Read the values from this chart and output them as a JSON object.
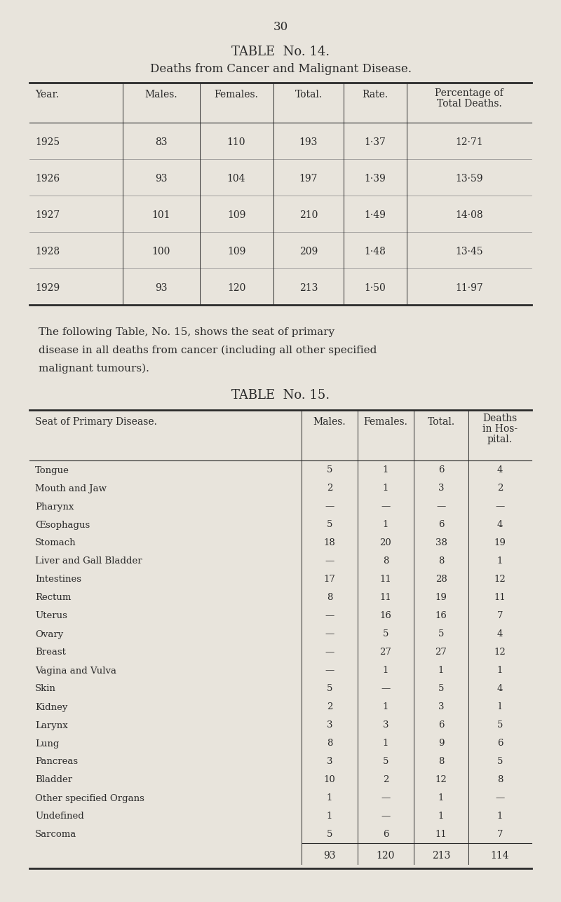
{
  "page_number": "30",
  "bg_color": "#e8e4dc",
  "text_color": "#2a2a2a",
  "table14": {
    "title": "TABLE  No. 14.",
    "subtitle": "Deaths from Cancer and Malignant Disease.",
    "headers": [
      "Year.",
      "Males.",
      "Females.",
      "Total.",
      "Rate.",
      "Percentage of\nTotal Deaths."
    ],
    "rows": [
      [
        "1925",
        "83",
        "110",
        "193",
        "1·37",
        "12·71"
      ],
      [
        "1926",
        "93",
        "104",
        "197",
        "1·39",
        "13·59"
      ],
      [
        "1927",
        "101",
        "109",
        "210",
        "1·49",
        "14·08"
      ],
      [
        "1928",
        "100",
        "109",
        "209",
        "1·48",
        "13·45"
      ],
      [
        "1929",
        "93",
        "120",
        "213",
        "1·50",
        "11·97"
      ]
    ]
  },
  "para_lines": [
    "The following Table, No. 15, shows the seat of primary",
    "disease in all deaths from cancer (including all other specified",
    "malignant tumours)."
  ],
  "table15": {
    "title": "TABLE  No. 15.",
    "headers": [
      "Seat of Primary Disease.",
      "Males.",
      "Females.",
      "Total.",
      "Deaths\nin Hos-\npital."
    ],
    "rows": [
      [
        "Tongue  ..    ..    ..    ..",
        "5",
        "1",
        "6",
        "4"
      ],
      [
        "Mouth and Jaw    ..    ..",
        "2",
        "1",
        "3",
        "2"
      ],
      [
        "Pharynx ..    ..    ..    ..",
        "—",
        "—",
        "—",
        "—"
      ],
      [
        "Œsophagus    ..    ..    ..",
        "5",
        "1",
        "6",
        "4"
      ],
      [
        "Stomach ..    ..    ..    ..",
        "18",
        "20",
        "38",
        "19"
      ],
      [
        "Liver and Gall Bladder    ..",
        "—",
        "8",
        "8",
        "1"
      ],
      [
        "Intestines    ..    ..    ..",
        "17",
        "11",
        "28",
        "12"
      ],
      [
        "Rectum  ..    ..    ..    ..",
        "8",
        "11",
        "19",
        "11"
      ],
      [
        "Uterus  ..    ..    ..    ..",
        "—",
        "16",
        "16",
        "7"
      ],
      [
        "Ovary   ..    ..    ..    ..",
        "—",
        "5",
        "5",
        "4"
      ],
      [
        "Breast  ..    ..    ..    ..",
        "—",
        "27",
        "27",
        "12"
      ],
      [
        "Vagina and Vulva    ..    ..",
        "—",
        "1",
        "1",
        "1"
      ],
      [
        "Skin    ..    ..    ..    ..",
        "5",
        "—",
        "5",
        "4"
      ],
      [
        "Kidney  ..    ..    ..    ..",
        "2",
        "1",
        "3",
        "l"
      ],
      [
        "Larynx  ..    ..    ..    ..",
        "3",
        "3",
        "6",
        "5"
      ],
      [
        "Lung    ..    ..    ..    ..",
        "8",
        "1",
        "9",
        "6"
      ],
      [
        "Pancreas ..   ..    ..    ..",
        "3",
        "5",
        "8",
        "5"
      ],
      [
        "Bladder ..    ..    ..    ..",
        "10",
        "2",
        "12",
        "8"
      ],
      [
        "Other specified Organs..    ..",
        "1",
        "—",
        "1",
        "—"
      ],
      [
        "Undefined    ..    ..    ..",
        "1",
        "—",
        "1",
        "1"
      ],
      [
        "Sarcoma ..    ..    ..    ..",
        "5",
        "6",
        "11",
        "7"
      ]
    ],
    "totals": [
      "93",
      "120",
      "213",
      "114"
    ]
  }
}
